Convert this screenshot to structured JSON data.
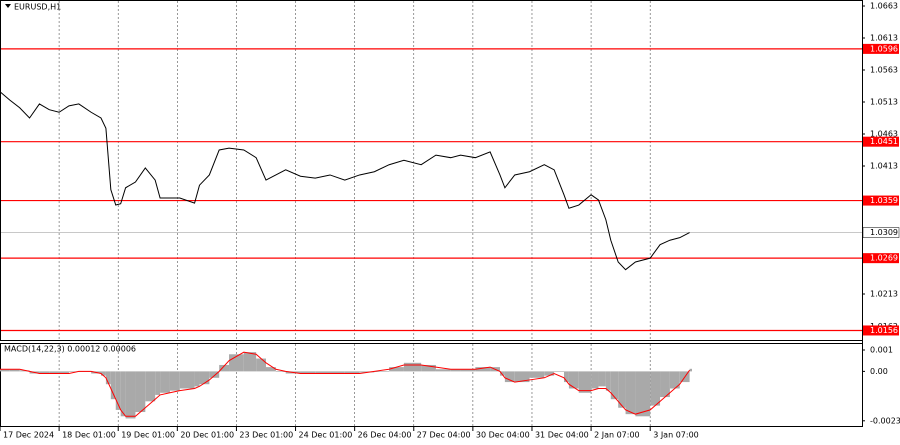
{
  "chart_data": [
    {
      "type": "line",
      "title": "EURUSD,H1",
      "x": [
        0,
        4,
        8,
        12,
        16,
        20,
        24,
        28,
        32,
        37,
        41,
        43,
        45,
        47,
        49,
        51,
        55,
        59,
        63,
        65,
        69,
        73,
        79,
        81,
        85,
        89,
        93,
        99,
        104,
        108,
        112,
        116,
        122,
        128,
        134,
        140,
        146,
        152,
        158,
        164,
        171,
        177,
        183,
        187,
        193,
        199,
        203,
        205,
        209,
        215,
        221,
        225,
        229,
        231,
        235,
        240,
        243,
        246,
        248,
        251,
        254,
        258,
        264,
        268,
        272,
        276,
        280
      ],
      "values": [
        1.0529,
        1.0516,
        1.0504,
        1.0488,
        1.051,
        1.0501,
        1.0497,
        1.0507,
        1.051,
        1.0497,
        1.0488,
        1.0472,
        1.0376,
        1.0352,
        1.0354,
        1.0379,
        1.0388,
        1.041,
        1.0391,
        1.0363,
        1.0363,
        1.0363,
        1.0355,
        1.0383,
        1.0399,
        1.0438,
        1.0441,
        1.0438,
        1.0426,
        1.0391,
        1.0399,
        1.0407,
        1.0397,
        1.0394,
        1.0399,
        1.0391,
        1.0399,
        1.0404,
        1.0415,
        1.0422,
        1.0415,
        1.043,
        1.0426,
        1.043,
        1.0426,
        1.0435,
        1.0399,
        1.0379,
        1.0399,
        1.0404,
        1.0415,
        1.0407,
        1.0368,
        1.0347,
        1.0352,
        1.0368,
        1.036,
        1.0329,
        1.0297,
        1.0263,
        1.0251,
        1.0263,
        1.0269,
        1.029,
        1.0297,
        1.0301,
        1.0309
      ],
      "color": "#000000",
      "xlim": [
        0,
        350
      ],
      "xticks": [
        {
          "value": 0,
          "label": "17 Dec 2024"
        },
        {
          "value": 24,
          "label": "18 Dec 01:00"
        },
        {
          "value": 48,
          "label": "19 Dec 01:00"
        },
        {
          "value": 72,
          "label": "20 Dec 01:00"
        },
        {
          "value": 96,
          "label": "23 Dec 01:00"
        },
        {
          "value": 120,
          "label": "24 Dec 01:00"
        },
        {
          "value": 144,
          "label": "26 Dec 04:00"
        },
        {
          "value": 168,
          "label": "27 Dec 04:00"
        },
        {
          "value": 192,
          "label": "30 Dec 04:00"
        },
        {
          "value": 216,
          "label": "31 Dec 04:00"
        },
        {
          "value": 240,
          "label": "2 Jan 07:00"
        },
        {
          "value": 264,
          "label": "3 Jan 07:00"
        }
      ],
      "ylim": [
        1.01411,
        1.06724
      ],
      "yticks": [
        1.0663,
        1.0613,
        1.0563,
        1.0513,
        1.0463,
        1.0413,
        1.0213,
        1.0162
      ],
      "levels": [
        1.0596,
        1.0451,
        1.0359,
        1.0269,
        1.0156
      ],
      "level_color": "#ff0000",
      "last_price": 1.0309,
      "grid": true
    },
    {
      "type": "macd",
      "title": "MACD(14,22,3) 0.00012 0.00006",
      "x": [
        0,
        4,
        8,
        12,
        16,
        20,
        24,
        28,
        32,
        37,
        41,
        43,
        45,
        47,
        49,
        51,
        55,
        59,
        63,
        65,
        69,
        73,
        79,
        81,
        85,
        89,
        93,
        99,
        104,
        108,
        112,
        116,
        122,
        128,
        134,
        140,
        146,
        152,
        158,
        164,
        171,
        177,
        183,
        187,
        193,
        199,
        203,
        205,
        209,
        215,
        221,
        225,
        229,
        231,
        235,
        240,
        243,
        246,
        248,
        251,
        254,
        258,
        264,
        268,
        272,
        276,
        280
      ],
      "series": [
        {
          "type": "histogram",
          "color": "#a9a9a9",
          "values": [
            0.0001,
            0.0001,
            5e-05,
            -0.0001,
            -0.0001,
            -0.0001,
            -0.0001,
            0,
            0,
            -0.0001,
            -0.0002,
            -0.0006,
            -0.0013,
            -0.0018,
            -0.0021,
            -0.0022,
            -0.0019,
            -0.0014,
            -0.0011,
            -0.001,
            -0.0009,
            -0.0008,
            -0.0007,
            -0.0006,
            -0.0003,
            0.0003,
            0.0008,
            0.0009,
            0.0006,
            0.0002,
            0,
            -0.0001,
            -0.0001,
            -0.0001,
            -0.0001,
            -0.0001,
            -5e-05,
            0,
            0.0002,
            0.0004,
            0.0003,
            0.0001,
            0.0001,
            0.0001,
            0.0002,
            0.0002,
            -0.0002,
            -0.0005,
            -0.0005,
            -0.0003,
            -0.0002,
            0,
            -0.0005,
            -0.0008,
            -0.001,
            -0.0008,
            -0.0007,
            -0.0009,
            -0.0013,
            -0.0017,
            -0.002,
            -0.0021,
            -0.0016,
            -0.0012,
            -0.0008,
            -0.0005,
            0.00012
          ]
        },
        {
          "type": "line",
          "color": "#ff0000",
          "values": [
            0.0001,
            0.0001,
            0.0001,
            0,
            -0.0001,
            -0.0001,
            -0.0001,
            -0.0001,
            0,
            0,
            -0.0001,
            -0.0003,
            -0.0008,
            -0.0013,
            -0.0018,
            -0.0021,
            -0.0021,
            -0.0017,
            -0.0013,
            -0.0011,
            -0.001,
            -0.0009,
            -0.0008,
            -0.0007,
            -0.0004,
            0,
            0.0005,
            0.0009,
            0.0008,
            0.0004,
            0.0001,
            0,
            -0.0001,
            -0.0001,
            -0.0001,
            -0.0001,
            -0.0001,
            0,
            0.0001,
            0.0003,
            0.0003,
            0.0002,
            0.0001,
            0.0001,
            0.0001,
            0.0002,
            0,
            -0.0003,
            -0.0005,
            -0.0004,
            -0.0003,
            -0.0001,
            -0.0003,
            -0.0006,
            -0.0009,
            -0.0009,
            -0.0008,
            -0.0008,
            -0.001,
            -0.0014,
            -0.0018,
            -0.002,
            -0.0018,
            -0.0014,
            -0.001,
            -0.0006,
            6e-05
          ]
        }
      ],
      "xlim": [
        0,
        350
      ],
      "ylim": [
        -0.0026,
        0.00128
      ],
      "yticks": [
        0.001,
        {
          "value": 0,
          "label": "0.00"
        },
        -0.00231
      ]
    }
  ]
}
